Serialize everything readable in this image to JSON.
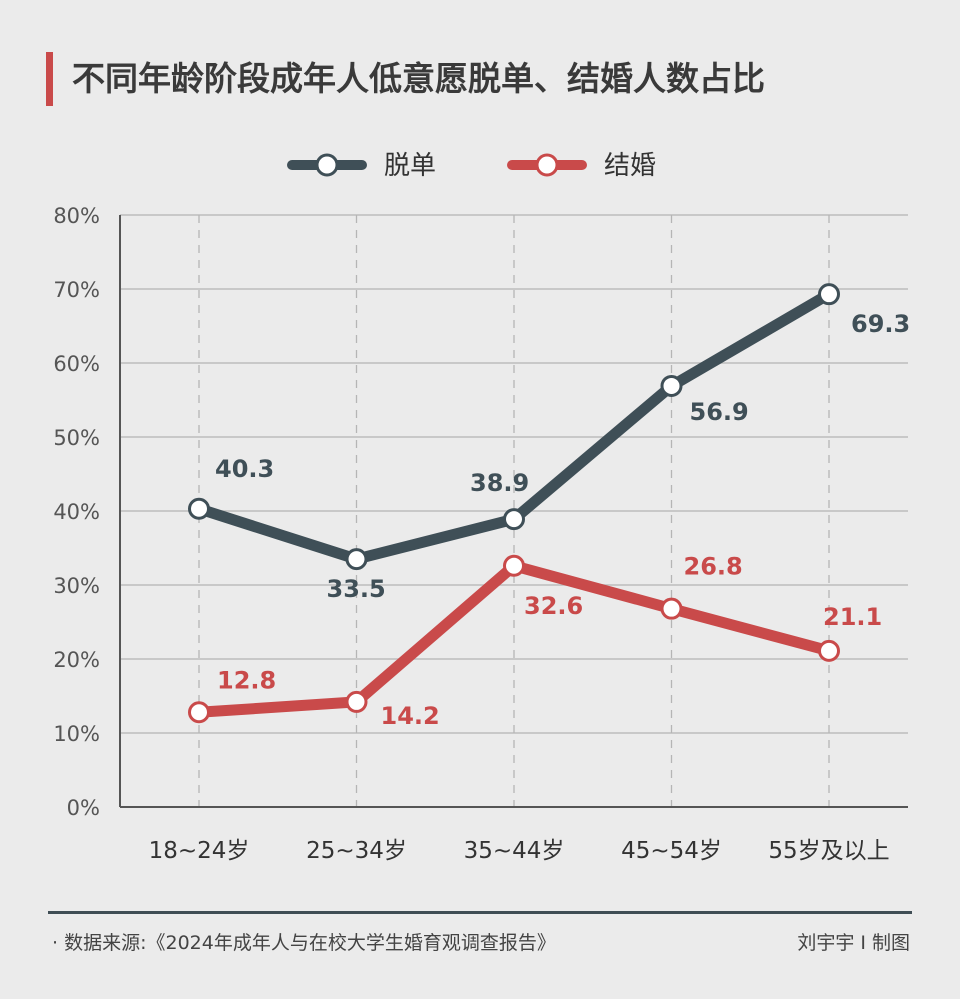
{
  "title": "不同年龄阶段成年人低意愿脱单、结婚人数占比",
  "footer": {
    "source": "· 数据来源:《2024年成年人与在校大学生婚育观调查报告》",
    "credit": "刘宇宇 I 制图"
  },
  "colors": {
    "accent": "#c94a4a",
    "series_single": "#3f4f57",
    "series_marry": "#c94a4a",
    "background": "#ebebeb"
  },
  "chart_data": {
    "type": "line",
    "title": "不同年龄阶段成年人低意愿脱单、结婚人数占比",
    "categories": [
      "18~24岁",
      "25~34岁",
      "35~44岁",
      "45~54岁",
      "55岁及以上"
    ],
    "y_ticks": [
      "0%",
      "10%",
      "20%",
      "30%",
      "40%",
      "50%",
      "60%",
      "70%",
      "80%"
    ],
    "ylim": [
      0,
      80
    ],
    "grid": true,
    "legend": "top-center",
    "series": [
      {
        "name": "脱单",
        "color": "#3f4f57",
        "values": [
          40.3,
          33.5,
          38.9,
          56.9,
          69.3
        ],
        "labels": [
          "40.3",
          "33.5",
          "38.9",
          "56.9",
          "69.3"
        ]
      },
      {
        "name": "结婚",
        "color": "#c94a4a",
        "values": [
          12.8,
          14.2,
          32.6,
          26.8,
          21.1
        ],
        "labels": [
          "12.8",
          "14.2",
          "32.6",
          "26.8",
          "21.1"
        ]
      }
    ]
  }
}
